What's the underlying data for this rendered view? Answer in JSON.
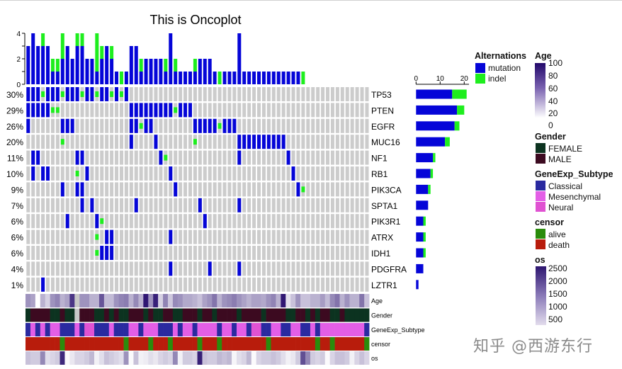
{
  "title": "This is Oncoplot",
  "colors": {
    "mutation": "#0505d8",
    "indel": "#1eee1e",
    "empty": "#cccccc",
    "FEMALE": "#0c3320",
    "MALE": "#3c0a20",
    "NA": "#c8c8c8",
    "Classical": "#2a2aa0",
    "Mesenchymal": "#e35ee6",
    "Neural": "#e052d2",
    "alive": "#2a8c0c",
    "death": "#b81c0c",
    "age_high": "#22086a",
    "os_high": "#2e1670"
  },
  "legend": {
    "alterations": {
      "title": "Alternations",
      "items": [
        "mutation",
        "indel"
      ]
    },
    "age": {
      "title": "Age",
      "ticks": [
        "100",
        "80",
        "60",
        "40",
        "20",
        "0"
      ]
    },
    "gender": {
      "title": "Gender",
      "items": [
        "FEMALE",
        "MALE"
      ]
    },
    "subtype": {
      "title": "GeneExp_Subtype",
      "items": [
        "Classical",
        "Mesenchymal",
        "Neural"
      ]
    },
    "censor": {
      "title": "censor",
      "items": [
        "alive",
        "death"
      ]
    },
    "os": {
      "title": "os",
      "ticks": [
        "2500",
        "2000",
        "1500",
        "1000",
        "500"
      ]
    }
  },
  "watermark": "知乎 @西游东行",
  "chart_data": {
    "type": "heatmap",
    "title": "This is Oncoplot",
    "n_samples": 70,
    "top_bar": {
      "type": "bar",
      "stacked": true,
      "ylim": [
        0,
        4
      ],
      "ticks": [
        "4",
        "2",
        "0"
      ]
    },
    "right_bar": {
      "type": "bar",
      "stacked": true,
      "xlim": [
        0,
        20
      ],
      "ticks": [
        "0",
        "10",
        "20"
      ]
    },
    "genes": [
      {
        "name": "TP53",
        "pct": "30%",
        "mutation": [
          0,
          1,
          2,
          4,
          5,
          6,
          8,
          9,
          10,
          12,
          13,
          15,
          16,
          18,
          20
        ],
        "indel": [
          3,
          7,
          11,
          14,
          17,
          19
        ]
      },
      {
        "name": "PTEN",
        "pct": "29%",
        "mutation": [
          0,
          1,
          2,
          3,
          4,
          21,
          22,
          23,
          24,
          25,
          26,
          27,
          28,
          29,
          31,
          32,
          33
        ],
        "indel": [
          5,
          6,
          30
        ]
      },
      {
        "name": "EGFR",
        "pct": "26%",
        "mutation": [
          0,
          7,
          8,
          9,
          21,
          22,
          24,
          25,
          34,
          35,
          36,
          37,
          38,
          40,
          41,
          42
        ],
        "indel": [
          23,
          39
        ]
      },
      {
        "name": "MUC16",
        "pct": "20%",
        "mutation": [
          21,
          26,
          43,
          44,
          45,
          46,
          47,
          48,
          49,
          50,
          51,
          52
        ],
        "indel": [
          7,
          34
        ]
      },
      {
        "name": "NF1",
        "pct": "11%",
        "mutation": [
          1,
          2,
          10,
          11,
          27,
          43,
          53
        ],
        "indel": [
          28
        ]
      },
      {
        "name": "RB1",
        "pct": "10%",
        "mutation": [
          1,
          3,
          4,
          12,
          29,
          54
        ],
        "indel": [
          10
        ]
      },
      {
        "name": "PIK3CA",
        "pct": "9%",
        "mutation": [
          7,
          10,
          11,
          30,
          55
        ],
        "indel": [
          56
        ]
      },
      {
        "name": "SPTA1",
        "pct": "7%",
        "mutation": [
          11,
          13,
          22,
          35,
          43
        ],
        "indel": []
      },
      {
        "name": "PIK3R1",
        "pct": "6%",
        "mutation": [
          8,
          14,
          36
        ],
        "indel": [
          15
        ]
      },
      {
        "name": "ATRX",
        "pct": "6%",
        "mutation": [
          16,
          17,
          29
        ],
        "indel": [
          14
        ]
      },
      {
        "name": "IDH1",
        "pct": "6%",
        "mutation": [
          15,
          16,
          17
        ],
        "indel": [
          14
        ]
      },
      {
        "name": "PDGFRA",
        "pct": "4%",
        "mutation": [
          29,
          37,
          43
        ],
        "indel": []
      },
      {
        "name": "LZTR1",
        "pct": "1%",
        "mutation": [
          3
        ],
        "indel": []
      }
    ],
    "annotations": {
      "labels": [
        "Age",
        "Gender",
        "GeneExp_Subtype",
        "censor",
        "os"
      ],
      "Age": [
        55,
        50,
        20,
        45,
        35,
        55,
        60,
        45,
        50,
        85,
        null,
        55,
        55,
        45,
        45,
        75,
        42,
        42,
        55,
        60,
        62,
        45,
        58,
        45,
        95,
        55,
        92,
        35,
        60,
        38,
        58,
        55,
        48,
        48,
        45,
        40,
        50,
        55,
        65,
        45,
        55,
        58,
        62,
        55,
        50,
        45,
        50,
        50,
        48,
        55,
        60,
        45,
        95,
        30,
        40,
        55,
        40,
        40,
        45,
        45,
        52,
        42,
        58,
        65,
        45,
        55,
        45,
        45,
        65,
        40
      ],
      "Gender": [
        "FEMALE",
        "MALE",
        "MALE",
        "MALE",
        "MALE",
        "FEMALE",
        "FEMALE",
        "MALE",
        "FEMALE",
        "FEMALE",
        "NA",
        "MALE",
        "MALE",
        "MALE",
        "FEMALE",
        "FEMALE",
        "MALE",
        "FEMALE",
        "MALE",
        "FEMALE",
        "FEMALE",
        "MALE",
        "MALE",
        "MALE",
        "FEMALE",
        "MALE",
        "FEMALE",
        "FEMALE",
        "MALE",
        "MALE",
        "FEMALE",
        "FEMALE",
        "MALE",
        "MALE",
        "MALE",
        "FEMALE",
        "MALE",
        "MALE",
        "FEMALE",
        "MALE",
        "MALE",
        "MALE",
        "MALE",
        "FEMALE",
        "MALE",
        "MALE",
        "MALE",
        "MALE",
        "FEMALE",
        "MALE",
        "MALE",
        "MALE",
        "MALE",
        "FEMALE",
        "FEMALE",
        "MALE",
        "MALE",
        "FEMALE",
        "MALE",
        "FEMALE",
        "MALE",
        "MALE",
        "FEMALE",
        "FEMALE",
        "MALE",
        "FEMALE",
        "FEMALE",
        "FEMALE",
        "FEMALE",
        "FEMALE"
      ],
      "GeneExp_Subtype": [
        "Classical",
        "Mesenchymal",
        "Classical",
        "Mesenchymal",
        "Classical",
        "Mesenchymal",
        "Mesenchymal",
        "Classical",
        "Classical",
        "Classical",
        "Mesenchymal",
        "Classical",
        "Neural",
        "Neural",
        "Classical",
        "Classical",
        "Classical",
        "Mesenchymal",
        "Classical",
        "Classical",
        "Classical",
        "Mesenchymal",
        "Mesenchymal",
        "Classical",
        "Mesenchymal",
        "Mesenchymal",
        "Mesenchymal",
        "Classical",
        "Classical",
        "Classical",
        "Mesenchymal",
        "Classical",
        "Mesenchymal",
        "Mesenchymal",
        "Classical",
        "Mesenchymal",
        "Mesenchymal",
        "Mesenchymal",
        "Mesenchymal",
        "Classical",
        "Mesenchymal",
        "Mesenchymal",
        "Classical",
        "Mesenchymal",
        "Mesenchymal",
        "Classical",
        "Neural",
        "Neural",
        "Classical",
        "Classical",
        "Mesenchymal",
        "Mesenchymal",
        "Classical",
        "Classical",
        "Mesenchymal",
        "Mesenchymal",
        "Classical",
        "Classical",
        "Mesenchymal",
        "Classical",
        "Mesenchymal",
        "Mesenchymal",
        "Mesenchymal",
        "Mesenchymal",
        "Mesenchymal",
        "Mesenchymal",
        "Mesenchymal",
        "Mesenchymal",
        "Mesenchymal",
        "Classical"
      ],
      "censor": [
        "death",
        "death",
        "death",
        "death",
        "death",
        "death",
        "death",
        "alive",
        "death",
        "death",
        "death",
        "death",
        "death",
        "death",
        "death",
        "death",
        "death",
        "death",
        "death",
        "death",
        "alive",
        "death",
        "death",
        "death",
        "death",
        "alive",
        "death",
        "death",
        "death",
        "alive",
        "death",
        "death",
        "death",
        "death",
        "death",
        "alive",
        "death",
        "death",
        "death",
        "alive",
        "death",
        "death",
        "death",
        "death",
        "death",
        "death",
        "death",
        "death",
        "death",
        "alive",
        "death",
        "death",
        "death",
        "death",
        "death",
        "death",
        "death",
        "death",
        "death",
        "alive",
        "death",
        "death",
        "alive",
        "death",
        "death",
        "death",
        "death",
        "death",
        "death",
        "alive"
      ],
      "os": [
        900,
        800,
        800,
        1500,
        600,
        700,
        800,
        2500,
        300,
        500,
        700,
        700,
        800,
        1000,
        400,
        600,
        900,
        800,
        700,
        600,
        1400,
        300,
        900,
        400,
        450,
        600,
        500,
        700,
        800,
        700,
        1500,
        400,
        800,
        800,
        700,
        2600,
        900,
        800,
        800,
        1000,
        900,
        1000,
        350,
        600,
        700,
        1000,
        300,
        700,
        800,
        800,
        900,
        800,
        600,
        400,
        500,
        800,
        2100,
        1500,
        800,
        700,
        800,
        300,
        700,
        900,
        900,
        800,
        400,
        700,
        900,
        700
      ]
    }
  }
}
